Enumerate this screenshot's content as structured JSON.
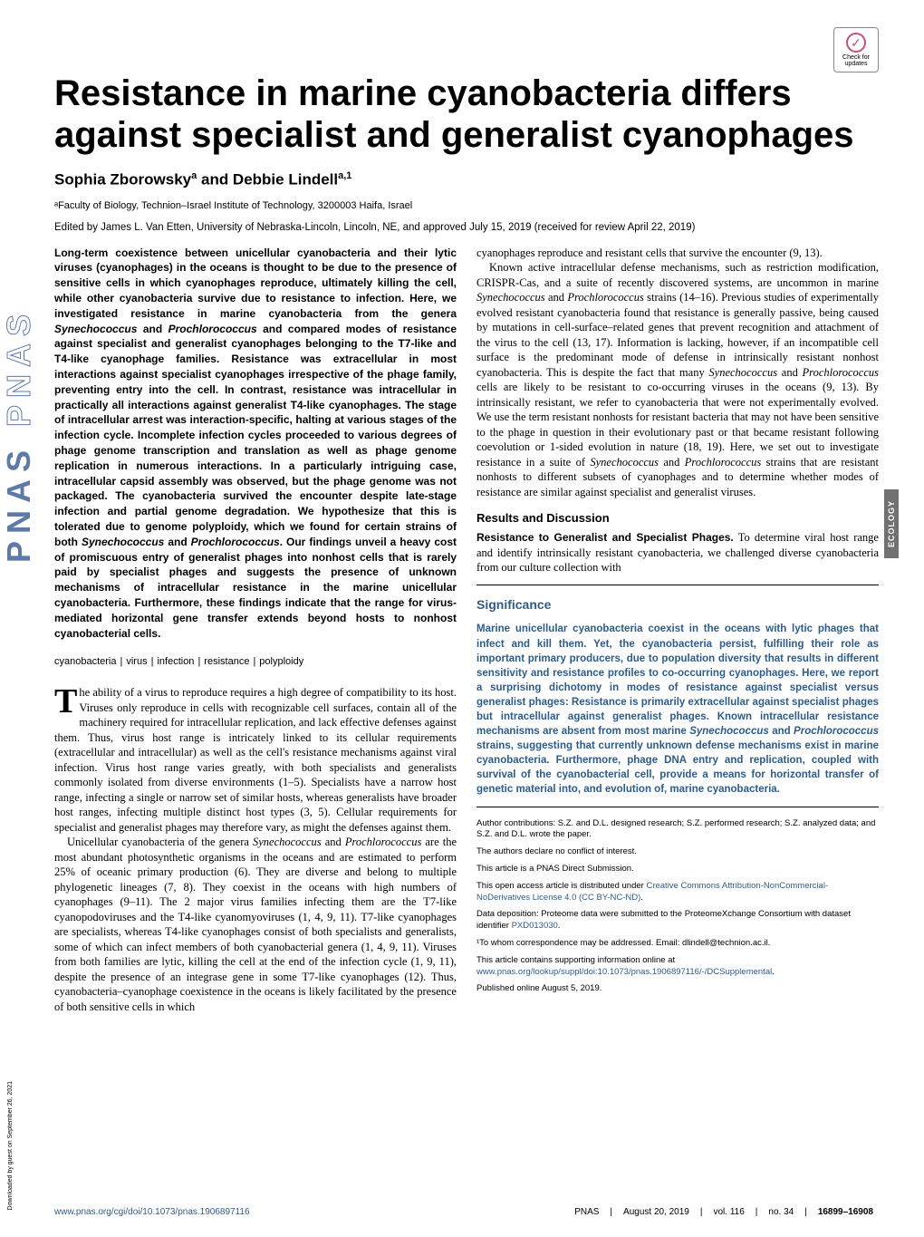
{
  "journal": {
    "logo": "PNAS",
    "category_tab": "ECOLOGY",
    "downloaded": "Downloaded by guest on September 26, 2021"
  },
  "badge": {
    "label1": "Check for",
    "label2": "updates"
  },
  "title": "Resistance in marine cyanobacteria differs against specialist and generalist cyanophages",
  "authors_html": "Sophia Zborowsky<sup>a</sup> and Debbie Lindell<sup>a,1</sup>",
  "affiliation": "ᵃFaculty of Biology, Technion–Israel Institute of Technology, 3200003 Haifa, Israel",
  "edited": "Edited by James L. Van Etten, University of Nebraska-Lincoln, Lincoln, NE, and approved July 15, 2019 (received for review April 22, 2019)",
  "abstract": "Long-term coexistence between unicellular cyanobacteria and their lytic viruses (cyanophages) in the oceans is thought to be due to the presence of sensitive cells in which cyanophages reproduce, ultimately killing the cell, while other cyanobacteria survive due to resistance to infection. Here, we investigated resistance in marine cyanobacteria from the genera Synechococcus and Prochlorococcus and compared modes of resistance against specialist and generalist cyanophages belonging to the T7-like and T4-like cyanophage families. Resistance was extracellular in most interactions against specialist cyanophages irrespective of the phage family, preventing entry into the cell. In contrast, resistance was intracellular in practically all interactions against generalist T4-like cyanophages. The stage of intracellular arrest was interaction-specific, halting at various stages of the infection cycle. Incomplete infection cycles proceeded to various degrees of phage genome transcription and translation as well as phage genome replication in numerous interactions. In a particularly intriguing case, intracellular capsid assembly was observed, but the phage genome was not packaged. The cyanobacteria survived the encounter despite late-stage infection and partial genome degradation. We hypothesize that this is tolerated due to genome polyploidy, which we found for certain strains of both Synechococcus and Prochlorococcus. Our findings unveil a heavy cost of promiscuous entry of generalist phages into nonhost cells that is rarely paid by specialist phages and suggests the presence of unknown mechanisms of intracellular resistance in the marine unicellular cyanobacteria. Furthermore, these findings indicate that the range for virus-mediated horizontal gene transfer extends beyond hosts to nonhost cyanobacterial cells.",
  "keywords": [
    "cyanobacteria",
    "virus",
    "infection",
    "resistance",
    "polyploidy"
  ],
  "intro_p1": "he ability of a virus to reproduce requires a high degree of compatibility to its host. Viruses only reproduce in cells with recognizable cell surfaces, contain all of the machinery required for intracellular replication, and lack effective defenses against them. Thus, virus host range is intricately linked to its cellular requirements (extracellular and intracellular) as well as the cell's resistance mechanisms against viral infection. Virus host range varies greatly, with both specialists and generalists commonly isolated from diverse environments (1–5). Specialists have a narrow host range, infecting a single or narrow set of similar hosts, whereas generalists have broader host ranges, infecting multiple distinct host types (3, 5). Cellular requirements for specialist and generalist phages may therefore vary, as might the defenses against them.",
  "intro_p2": "Unicellular cyanobacteria of the genera Synechococcus and Prochlorococcus are the most abundant photosynthetic organisms in the oceans and are estimated to perform 25% of oceanic primary production (6). They are diverse and belong to multiple phylogenetic lineages (7, 8). They coexist in the oceans with high numbers of cyanophages (9–11). The 2 major virus families infecting them are the T7-like cyanopodoviruses and the T4-like cyanomyoviruses (1, 4, 9, 11). T7-like cyanophages are specialists, whereas T4-like cyanophages consist of both specialists and generalists, some of which can infect members of both cyanobacterial genera (1, 4, 9, 11). Viruses from both families are lytic, killing the cell at the end of the infection cycle (1, 9, 11), despite the presence of an integrase gene in some T7-like cyanophages (12). Thus, cyanobacteria–cyanophage coexistence in the oceans is likely facilitated by the presence of both sensitive cells in which",
  "col2_p1": "cyanophages reproduce and resistant cells that survive the encounter (9, 13).",
  "col2_p2": "Known active intracellular defense mechanisms, such as restriction modification, CRISPR-Cas, and a suite of recently discovered systems, are uncommon in marine Synechococcus and Prochlorococcus strains (14–16). Previous studies of experimentally evolved resistant cyanobacteria found that resistance is generally passive, being caused by mutations in cell-surface–related genes that prevent recognition and attachment of the virus to the cell (13, 17). Information is lacking, however, if an incompatible cell surface is the predominant mode of defense in intrinsically resistant nonhost cyanobacteria. This is despite the fact that many Synechococcus and Prochlorococcus cells are likely to be resistant to co-occurring viruses in the oceans (9, 13). By intrinsically resistant, we refer to cyanobacteria that were not experimentally evolved. We use the term resistant nonhosts for resistant bacteria that may not have been sensitive to the phage in question in their evolutionary past or that became resistant following coevolution or 1-sided evolution in nature (18, 19). Here, we set out to investigate resistance in a suite of Synechococcus and Prochlorococcus strains that are resistant nonhosts to different subsets of cyanophages and to determine whether modes of resistance are similar against specialist and generalist viruses.",
  "results_heading": "Results and Discussion",
  "results_sub": "Resistance to Generalist and Specialist Phages.",
  "results_text": "To determine viral host range and identify intrinsically resistant cyanobacteria, we challenged diverse cyanobacteria from our culture collection with",
  "significance": {
    "heading": "Significance",
    "text": "Marine unicellular cyanobacteria coexist in the oceans with lytic phages that infect and kill them. Yet, the cyanobacteria persist, fulfilling their role as important primary producers, due to population diversity that results in different sensitivity and resistance profiles to co-occurring cyanophages. Here, we report a surprising dichotomy in modes of resistance against specialist versus generalist phages: Resistance is primarily extracellular against specialist phages but intracellular against generalist phages. Known intracellular resistance mechanisms are absent from most marine Synechococcus and Prochlorococcus strains, suggesting that currently unknown defense mechanisms exist in marine cyanobacteria. Furthermore, phage DNA entry and replication, coupled with survival of the cyanobacterial cell, provide a means for horizontal transfer of genetic material into, and evolution of, marine cyanobacteria."
  },
  "footer": {
    "contributions": "Author contributions: S.Z. and D.L. designed research; S.Z. performed research; S.Z. analyzed data; and S.Z. and D.L. wrote the paper.",
    "conflict": "The authors declare no conflict of interest.",
    "direct": "This article is a PNAS Direct Submission.",
    "license_pre": "This open access article is distributed under ",
    "license_link": "Creative Commons Attribution-NonCommercial-NoDerivatives License 4.0 (CC BY-NC-ND)",
    "license_post": ".",
    "data_pre": "Data deposition: Proteome data were submitted to the ProteomeXchange Consortium with dataset identifier ",
    "data_link": "PXD013030",
    "data_post": ".",
    "correspondence": "¹To whom correspondence may be addressed. Email: dlindell@technion.ac.il.",
    "supp_pre": "This article contains supporting information online at ",
    "supp_link": "www.pnas.org/lookup/suppl/doi:10.1073/pnas.1906897116/-/DCSupplemental",
    "supp_post": ".",
    "published": "Published online August 5, 2019."
  },
  "page_footer": {
    "doi": "www.pnas.org/cgi/doi/10.1073/pnas.1906897116",
    "journal": "PNAS",
    "date": "August 20, 2019",
    "vol": "vol. 116",
    "no": "no. 34",
    "pages": "16899–16908"
  }
}
